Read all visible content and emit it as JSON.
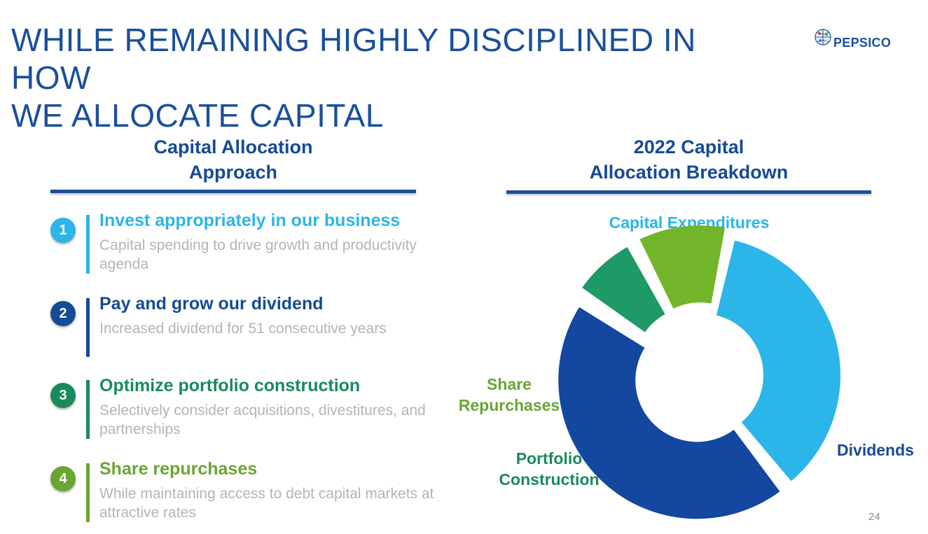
{
  "slide": {
    "title_lines": [
      "WHILE REMAINING HIGHLY DISCIPLINED IN HOW",
      "WE ALLOCATE CAPITAL"
    ],
    "logo_text": "PEPSICO",
    "page_number": "24"
  },
  "left": {
    "heading_lines": [
      "Capital Allocation",
      "Approach"
    ],
    "steps": [
      {
        "number": "1",
        "title": "Invest appropriately in our business",
        "desc": "Capital spending to drive growth and productivity agenda",
        "color": "#2bb5e8"
      },
      {
        "number": "2",
        "title": "Pay and grow our dividend",
        "desc": "Increased dividend for 51 consecutive years",
        "color": "#164a95"
      },
      {
        "number": "3",
        "title": "Optimize portfolio construction",
        "desc": "Selectively consider acquisitions, divestitures, and partnerships",
        "color": "#1a8a5a"
      },
      {
        "number": "4",
        "title": "Share repurchases",
        "desc": "While maintaining access to debt capital markets at attractive rates",
        "color": "#6aa532"
      }
    ]
  },
  "right": {
    "heading_lines": [
      "2022 Capital",
      "Allocation Breakdown"
    ]
  },
  "chart_data": {
    "type": "pie",
    "style": "donut",
    "title": "2022 Capital Allocation Breakdown",
    "slices": [
      {
        "label": "Capital Expenditures",
        "label_lines": [
          "Capital Expenditures"
        ],
        "value": 36,
        "color": "#2bb5e8",
        "label_color": "#2bb5e8"
      },
      {
        "label": "Dividends",
        "label_lines": [
          "Dividends"
        ],
        "value": 45,
        "color": "#1347a0",
        "label_color": "#164a95"
      },
      {
        "label": "Portfolio Construction",
        "label_lines": [
          "Portfolio",
          "Construction"
        ],
        "value": 8,
        "color": "#1d9a66",
        "label_color": "#1a8a5a"
      },
      {
        "label": "Share Repurchases",
        "label_lines": [
          "Share",
          "Repurchases"
        ],
        "value": 11,
        "color": "#72b52a",
        "label_color": "#6aa532"
      }
    ],
    "legend": "none",
    "data_labels": "outside"
  }
}
